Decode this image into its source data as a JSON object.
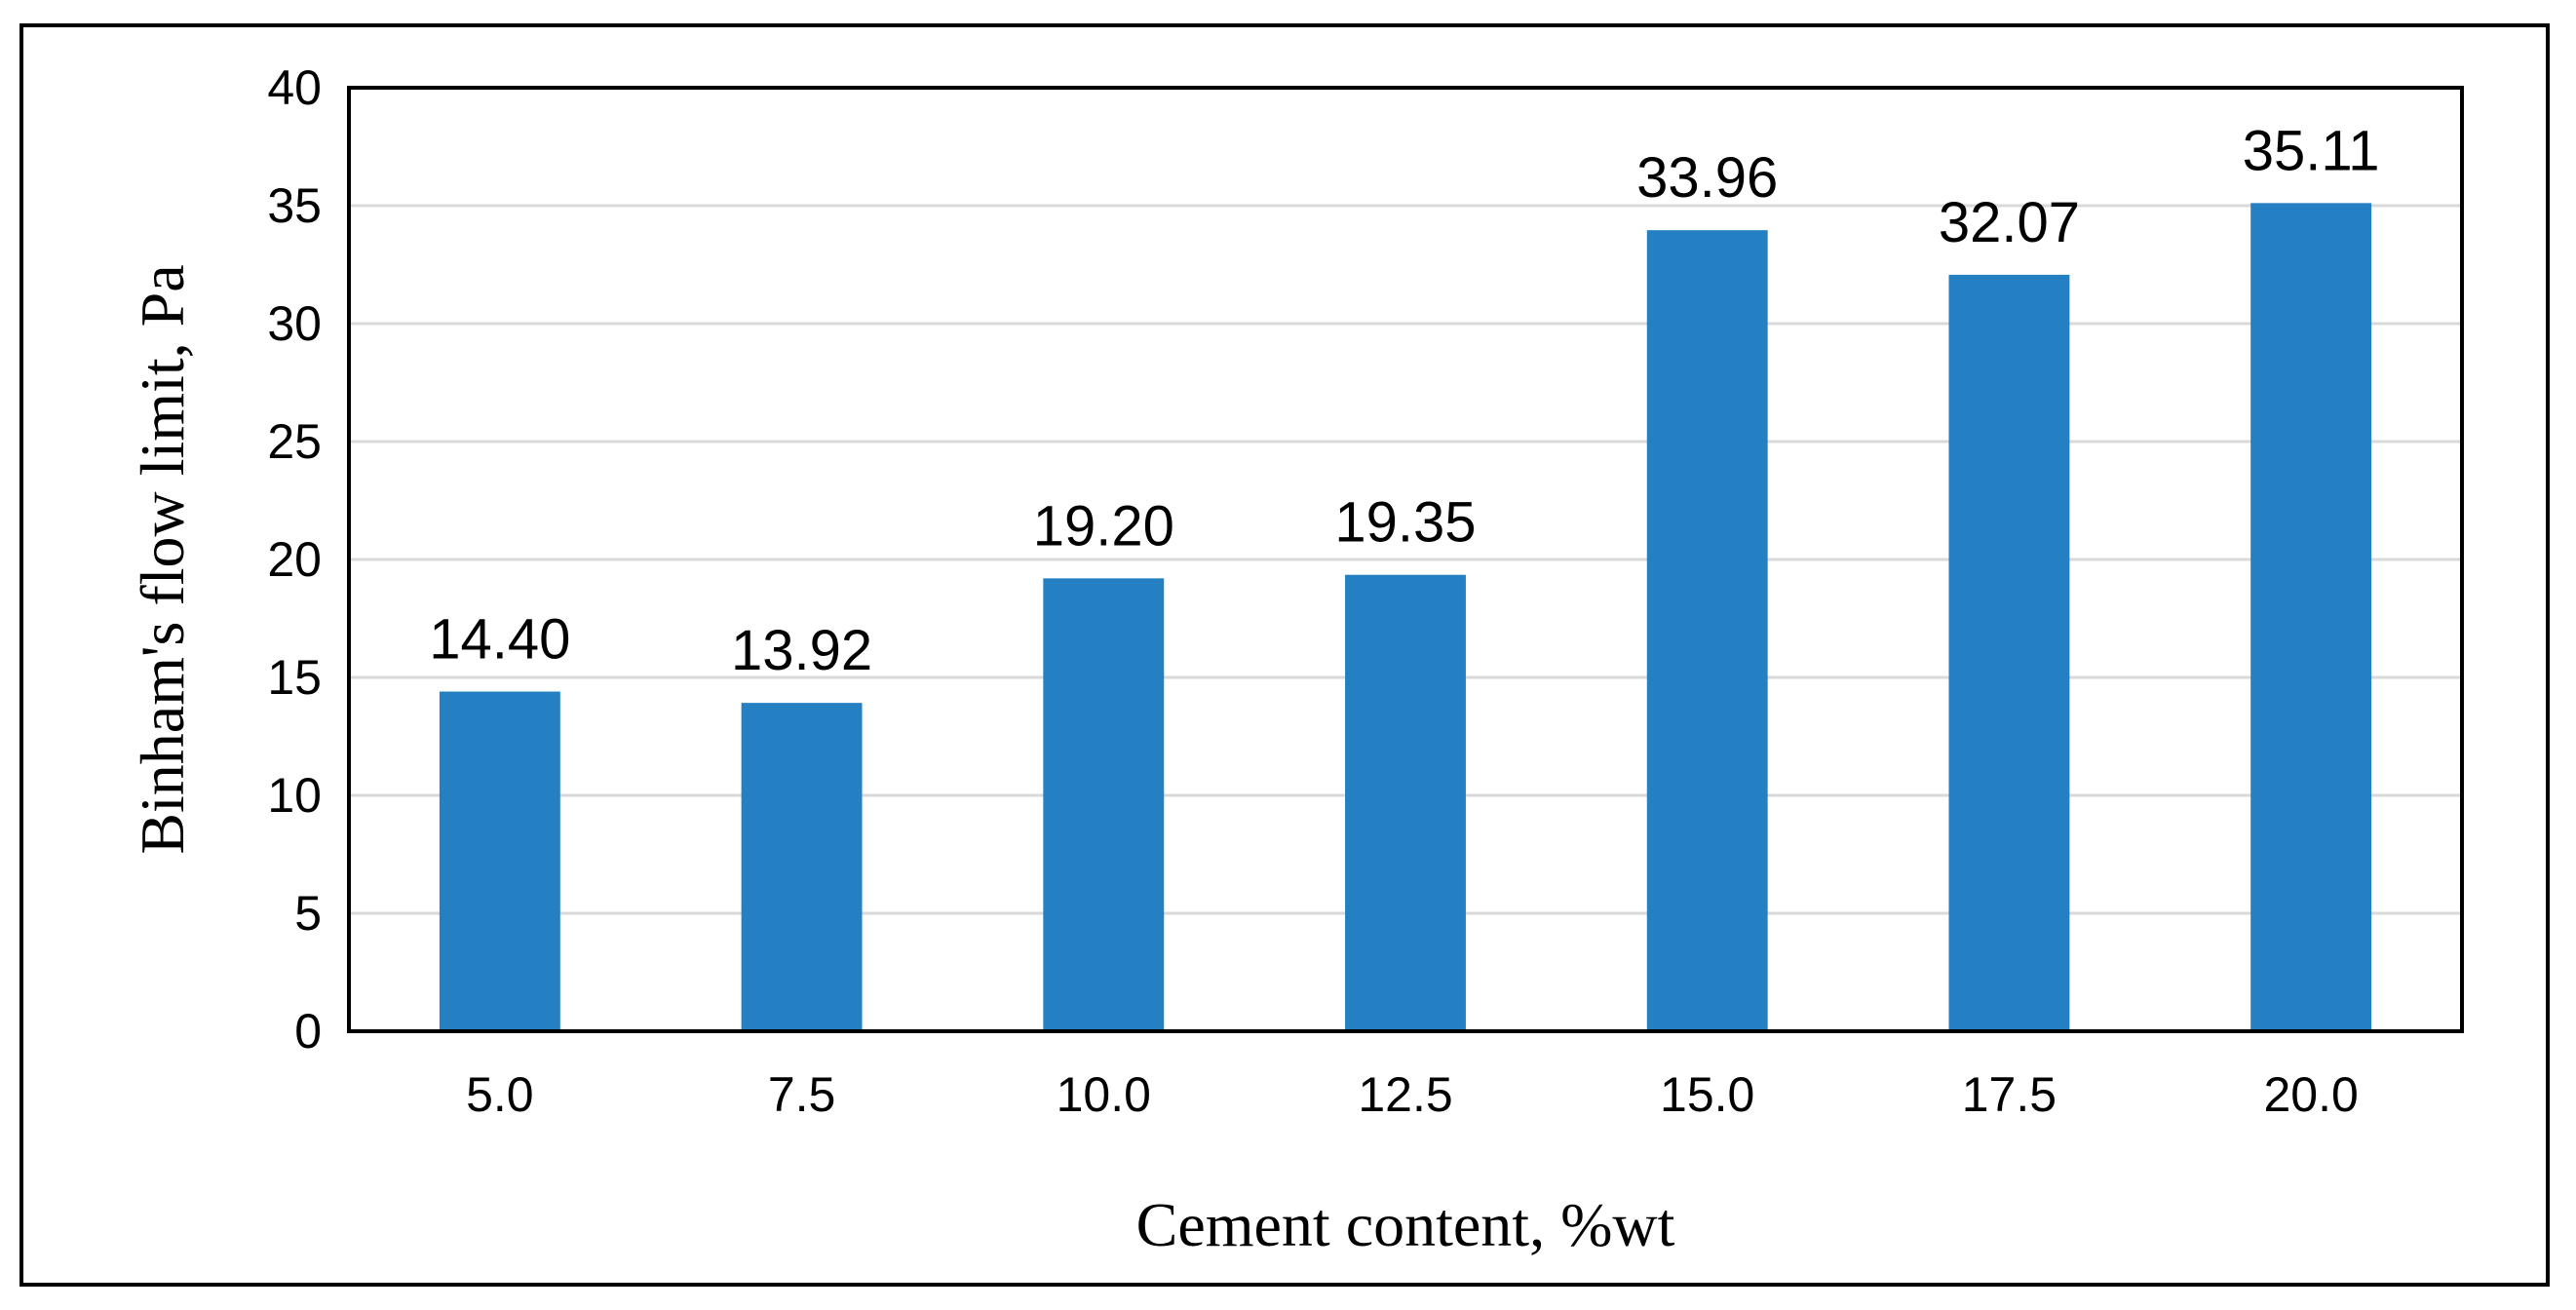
{
  "chart_data": {
    "type": "bar",
    "title": "",
    "xlabel": "Cement content, %wt",
    "ylabel": "Binham's flow limit, Pa",
    "categories": [
      "5.0",
      "7.5",
      "10.0",
      "12.5",
      "15.0",
      "17.5",
      "20.0"
    ],
    "values": [
      14.4,
      13.92,
      19.2,
      19.35,
      33.96,
      32.07,
      35.11
    ],
    "data_labels": [
      "14.40",
      "13.92",
      "19.20",
      "19.35",
      "33.96",
      "32.07",
      "35.11"
    ],
    "ylim": [
      0,
      40
    ],
    "yticks": [
      0,
      5,
      10,
      15,
      20,
      25,
      30,
      35,
      40
    ],
    "grid": true,
    "legend": "none",
    "colors": {
      "bar": "#2580c3",
      "grid": "#d9d9d9",
      "axis": "#000000"
    }
  }
}
